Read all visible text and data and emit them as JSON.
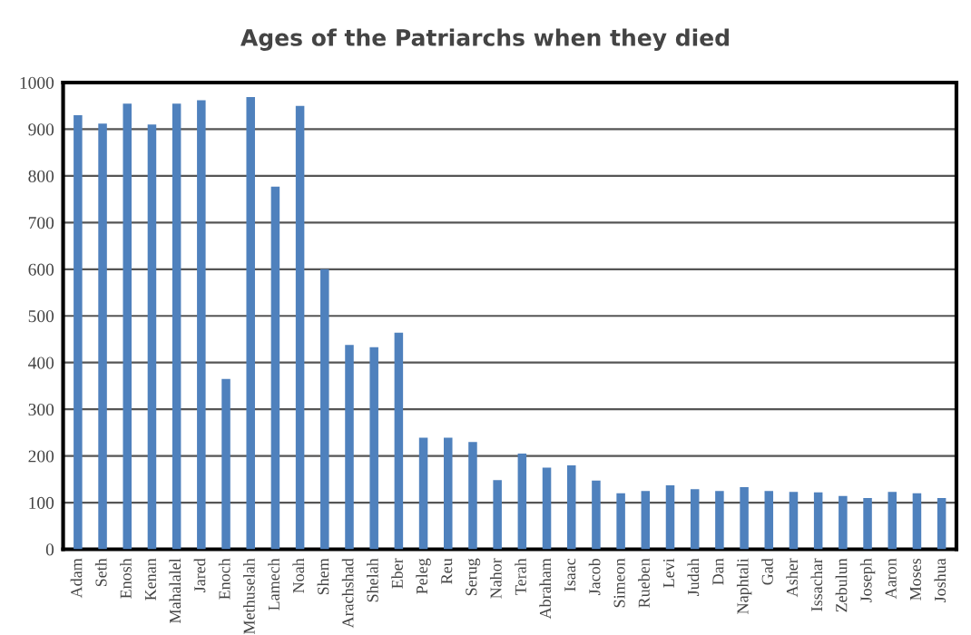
{
  "chart_data": {
    "type": "bar",
    "title": "Ages of the Patriarchs when they died",
    "categories": [
      "Adam",
      "Seth",
      "Enosh",
      "Kenan",
      "Mahalalel",
      "Jared",
      "Enoch",
      "Methuselah",
      "Lamech",
      "Noah",
      "Shem",
      "Arachshad",
      "Shelah",
      "Eber",
      "Peleg",
      "Reu",
      "Serug",
      "Nahor",
      "Terah",
      "Abraham",
      "Isaac",
      "Jacob",
      "Simeon",
      "Rueben",
      "Levi",
      "Judah",
      "Dan",
      "Naphtali",
      "Gad",
      "Asher",
      "Issachar",
      "Zebulun",
      "Joseph",
      "Aaron",
      "Moses",
      "Joshua"
    ],
    "values": [
      930,
      912,
      955,
      910,
      955,
      962,
      365,
      969,
      777,
      950,
      600,
      438,
      433,
      464,
      239,
      239,
      230,
      148,
      205,
      175,
      180,
      147,
      120,
      125,
      137,
      129,
      125,
      133,
      125,
      123,
      122,
      114,
      110,
      123,
      120,
      110
    ],
    "color": "#4f81bd",
    "ylim": [
      0,
      1000
    ],
    "yticks": [
      0,
      100,
      200,
      300,
      400,
      500,
      600,
      700,
      800,
      900,
      1000
    ],
    "grid": "y"
  }
}
